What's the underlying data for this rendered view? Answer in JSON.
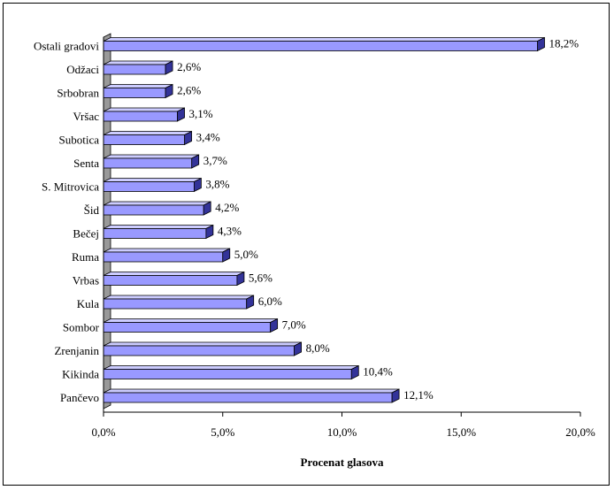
{
  "chart_data": {
    "type": "bar",
    "orientation": "horizontal",
    "style": "3d",
    "categories": [
      "Ostali gradovi",
      "Odžaci",
      "Srbobran",
      "Vršac",
      "Subotica",
      "Senta",
      "S. Mitrovica",
      "Šid",
      "Bečej",
      "Ruma",
      "Vrbas",
      "Kula",
      "Sombor",
      "Zrenjanin",
      "Kikinda",
      "Pančevo"
    ],
    "values": [
      18.2,
      2.6,
      2.6,
      3.1,
      3.4,
      3.7,
      3.8,
      4.2,
      4.3,
      5.0,
      5.6,
      6.0,
      7.0,
      8.0,
      10.4,
      12.1
    ],
    "data_labels": [
      "18,2%",
      "2,6%",
      "2,6%",
      "3,1%",
      "3,4%",
      "3,7%",
      "3,8%",
      "4,2%",
      "4,3%",
      "5,0%",
      "5,6%",
      "6,0%",
      "7,0%",
      "8,0%",
      "10,4%",
      "12,1%"
    ],
    "xlabel": "Procenat glasova",
    "xlim": [
      0,
      20
    ],
    "ticks": [
      0,
      5,
      10,
      15,
      20
    ],
    "tick_labels": [
      "0,0%",
      "5,0%",
      "10,0%",
      "15,0%",
      "20,0%"
    ],
    "grid": false,
    "legend": "none",
    "colors": {
      "bar_front": "#9999ff",
      "bar_top": "#ccccff",
      "bar_side": "#333399",
      "wall": "#999999",
      "outline": "#000000"
    }
  }
}
